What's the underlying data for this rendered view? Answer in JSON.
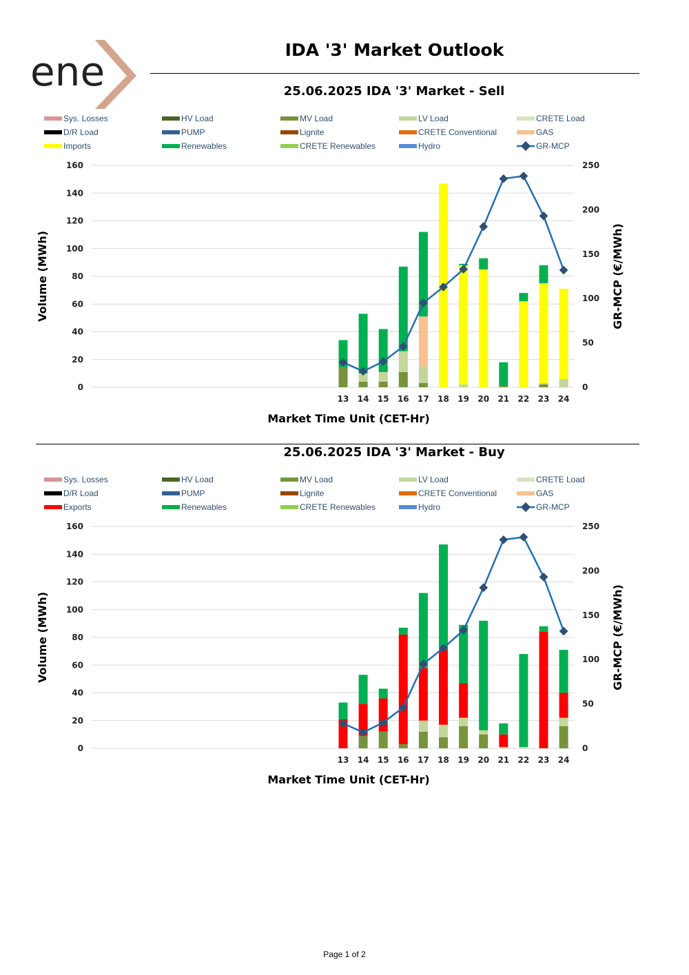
{
  "logo": {
    "text": "ene",
    "accent_color": "#d4a48e",
    "text_color": "#222222"
  },
  "page_title": "IDA '3' Market Outlook",
  "footer": "Page 1 of 2",
  "chart_data": [
    {
      "type": "bar",
      "stacked": true,
      "title": "25.06.2025  IDA '3' Market - Sell",
      "xlabel": "Market Time Unit (CET-Hr)",
      "ylabel": "Volume (MWh)",
      "y2label": "GR-MCP (€/MWh)",
      "ylim": [
        0,
        160
      ],
      "y2lim": [
        0,
        250
      ],
      "yticks": [
        0,
        20,
        40,
        60,
        80,
        100,
        120,
        140,
        160
      ],
      "y2ticks": [
        0,
        50,
        100,
        150,
        200,
        250
      ],
      "grid": true,
      "legend_position": "top",
      "legend": [
        {
          "name": "Sys. Losses",
          "color": "#d99594",
          "kind": "bar"
        },
        {
          "name": "HV Load",
          "color": "#4f6228",
          "kind": "bar"
        },
        {
          "name": "MV Load",
          "color": "#77933c",
          "kind": "bar"
        },
        {
          "name": "LV Load",
          "color": "#c3d69b",
          "kind": "bar"
        },
        {
          "name": "CRETE Load",
          "color": "#d7e4bd",
          "kind": "bar"
        },
        {
          "name": "D/R Load",
          "color": "#000000",
          "kind": "bar"
        },
        {
          "name": "PUMP",
          "color": "#366092",
          "kind": "bar"
        },
        {
          "name": "Lignite",
          "color": "#974806",
          "kind": "bar"
        },
        {
          "name": "CRETE Conventional",
          "color": "#e36c09",
          "kind": "bar"
        },
        {
          "name": "GAS",
          "color": "#fac090",
          "kind": "bar"
        },
        {
          "name": "Imports",
          "color": "#ffff00",
          "kind": "bar"
        },
        {
          "name": "Renewables",
          "color": "#00b050",
          "kind": "bar"
        },
        {
          "name": "CRETE Renewables",
          "color": "#92d050",
          "kind": "bar"
        },
        {
          "name": "Hydro",
          "color": "#558ed5",
          "kind": "bar"
        },
        {
          "name": "GR-MCP",
          "color": "#1f6fb4",
          "kind": "line"
        }
      ],
      "categories": [
        "13",
        "14",
        "15",
        "16",
        "17",
        "18",
        "19",
        "20",
        "21",
        "22",
        "23",
        "24"
      ],
      "series": [
        {
          "name": "MV Load",
          "color": "#77933c",
          "values": [
            14,
            4,
            4,
            11,
            3,
            0,
            0,
            0,
            1,
            0,
            2,
            0
          ]
        },
        {
          "name": "LV Load",
          "color": "#c3d69b",
          "values": [
            0,
            6,
            7,
            15,
            12,
            0,
            2,
            0,
            0,
            0,
            1,
            6
          ]
        },
        {
          "name": "GAS",
          "color": "#fac090",
          "values": [
            0,
            0,
            0,
            0,
            36,
            0,
            0,
            0,
            0,
            0,
            0,
            0
          ]
        },
        {
          "name": "Imports",
          "color": "#ffff00",
          "values": [
            0,
            0,
            0,
            0,
            0,
            147,
            86,
            85,
            0,
            62,
            72,
            65
          ]
        },
        {
          "name": "Renewables",
          "color": "#00b050",
          "values": [
            20,
            43,
            31,
            61,
            61,
            0,
            1,
            8,
            17,
            6,
            13,
            0
          ]
        }
      ],
      "line": {
        "name": "GR-MCP",
        "color": "#1f6fb4",
        "marker_color": "#2f4f74",
        "values": [
          28,
          18,
          29,
          46,
          95,
          113,
          133,
          181,
          235,
          238,
          193,
          132
        ]
      }
    },
    {
      "type": "bar",
      "stacked": true,
      "title": "25.06.2025  IDA '3' Market - Buy",
      "xlabel": "Market Time Unit (CET-Hr)",
      "ylabel": "Volume (MWh)",
      "y2label": "GR-MCP (€/MWh)",
      "ylim": [
        0,
        160
      ],
      "y2lim": [
        0,
        250
      ],
      "yticks": [
        0,
        20,
        40,
        60,
        80,
        100,
        120,
        140,
        160
      ],
      "y2ticks": [
        0,
        50,
        100,
        150,
        200,
        250
      ],
      "grid": true,
      "legend_position": "top",
      "legend": [
        {
          "name": "Sys. Losses",
          "color": "#d99594",
          "kind": "bar"
        },
        {
          "name": "HV Load",
          "color": "#4f6228",
          "kind": "bar"
        },
        {
          "name": "MV Load",
          "color": "#77933c",
          "kind": "bar"
        },
        {
          "name": "LV Load",
          "color": "#c3d69b",
          "kind": "bar"
        },
        {
          "name": "CRETE Load",
          "color": "#d7e4bd",
          "kind": "bar"
        },
        {
          "name": "D/R Load",
          "color": "#000000",
          "kind": "bar"
        },
        {
          "name": "PUMP",
          "color": "#366092",
          "kind": "bar"
        },
        {
          "name": "Lignite",
          "color": "#974806",
          "kind": "bar"
        },
        {
          "name": "CRETE Conventional",
          "color": "#e36c09",
          "kind": "bar"
        },
        {
          "name": "GAS",
          "color": "#fac090",
          "kind": "bar"
        },
        {
          "name": "Exports",
          "color": "#ff0000",
          "kind": "bar"
        },
        {
          "name": "Renewables",
          "color": "#00b050",
          "kind": "bar"
        },
        {
          "name": "CRETE Renewables",
          "color": "#92d050",
          "kind": "bar"
        },
        {
          "name": "Hydro",
          "color": "#558ed5",
          "kind": "bar"
        },
        {
          "name": "GR-MCP",
          "color": "#1f6fb4",
          "kind": "line"
        }
      ],
      "categories": [
        "13",
        "14",
        "15",
        "16",
        "17",
        "18",
        "19",
        "20",
        "21",
        "22",
        "23",
        "24"
      ],
      "series": [
        {
          "name": "MV Load",
          "color": "#77933c",
          "values": [
            0,
            9,
            12,
            3,
            12,
            8,
            16,
            10,
            0,
            0,
            0,
            16
          ]
        },
        {
          "name": "LV Load",
          "color": "#c3d69b",
          "values": [
            0,
            0,
            0,
            0,
            8,
            9,
            6,
            3,
            1,
            1,
            0,
            6
          ]
        },
        {
          "name": "Exports",
          "color": "#ff0000",
          "values": [
            21,
            23,
            24,
            79,
            38,
            54,
            25,
            0,
            9,
            0,
            84,
            18
          ]
        },
        {
          "name": "Renewables",
          "color": "#00b050",
          "values": [
            12,
            21,
            7,
            5,
            54,
            76,
            42,
            79,
            8,
            67,
            4,
            31
          ]
        }
      ],
      "line": {
        "name": "GR-MCP",
        "color": "#1f6fb4",
        "marker_color": "#2f4f74",
        "values": [
          28,
          18,
          29,
          46,
          95,
          113,
          133,
          181,
          235,
          238,
          193,
          132
        ]
      }
    }
  ]
}
